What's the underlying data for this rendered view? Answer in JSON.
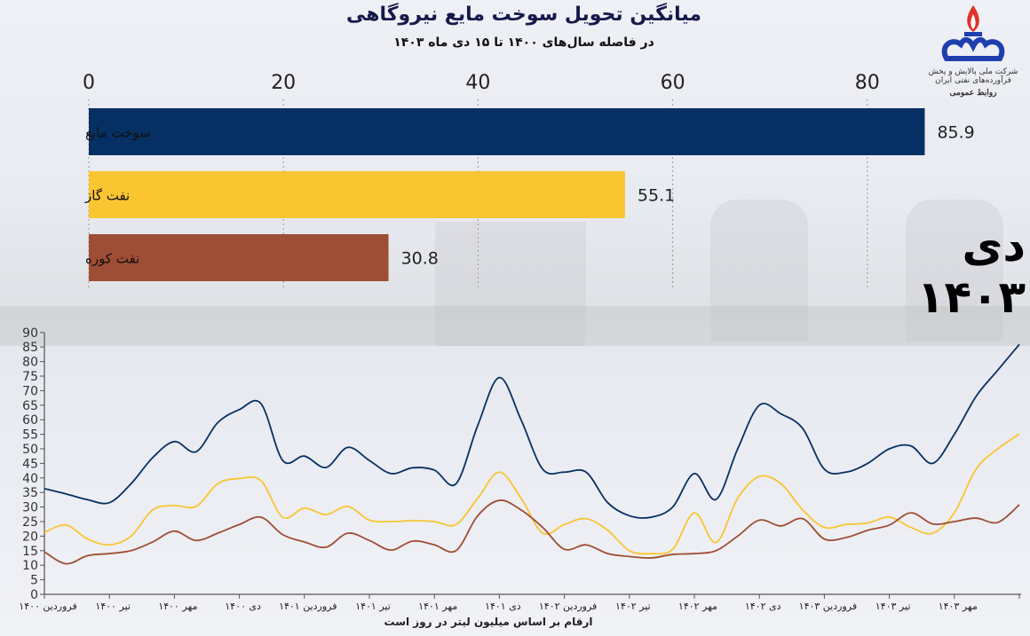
{
  "header": {
    "title": "میانگین تحویل سوخت مایع نیروگاهی",
    "subtitle": "در فاصله سال‌های ۱۴۰۰ تا ۱۵ دی ماه ۱۴۰۳"
  },
  "logo": {
    "org": "شرکت ملی پالایش و پخش فرآورده‌های نفتی ایران",
    "dept": "روابط عمومی"
  },
  "big_date": "دی ۱۴۰۳",
  "caption": "ارقام بر اساس میلیون لیتر در روز است",
  "colors": {
    "liquid_fuel": "#063063",
    "gasoil": "#f9c531",
    "fuel_oil": "#9e4e34"
  },
  "chart_data": [
    {
      "type": "bar",
      "orientation": "horizontal",
      "categories": [
        "سوخت مایع",
        "نفت گاز",
        "نفت کوره"
      ],
      "values": [
        85.9,
        55.1,
        30.8
      ],
      "value_labels": [
        "85.9",
        "55.1",
        "30.8"
      ],
      "xlim": [
        0,
        88
      ],
      "xticks": [
        "0",
        "20",
        "40",
        "60",
        "80"
      ],
      "axis_position": "top",
      "grid": true
    },
    {
      "type": "line",
      "x": [
        "فروردین ۱۴۰۰",
        "اردیبهشت ۱۴۰۰",
        "خرداد ۱۴۰۰",
        "تیر ۱۴۰۰",
        "مرداد ۱۴۰۰",
        "شهریور ۱۴۰۰",
        "مهر ۱۴۰۰",
        "آبان ۱۴۰۰",
        "آذر ۱۴۰۰",
        "دی ۱۴۰۰",
        "بهمن ۱۴۰۰",
        "اسفند ۱۴۰۰",
        "فروردین ۱۴۰۱",
        "اردیبهشت ۱۴۰۱",
        "خرداد ۱۴۰۱",
        "تیر ۱۴۰۱",
        "مرداد ۱۴۰۱",
        "شهریور ۱۴۰۱",
        "مهر ۱۴۰۱",
        "آبان ۱۴۰۱",
        "آذر ۱۴۰۱",
        "دی ۱۴۰۱",
        "بهمن ۱۴۰۱",
        "اسفند ۱۴۰۱",
        "فروردین ۱۴۰۲",
        "اردیبهشت ۱۴۰۲",
        "خرداد ۱۴۰۲",
        "تیر ۱۴۰۲",
        "مرداد ۱۴۰۲",
        "شهریور ۱۴۰۲",
        "مهر ۱۴۰۲",
        "آبان ۱۴۰۲",
        "آذر ۱۴۰۲",
        "دی ۱۴۰۲",
        "بهمن ۱۴۰۲",
        "اسفند ۱۴۰۲",
        "فروردین ۱۴۰۳",
        "اردیبهشت ۱۴۰۳",
        "خرداد ۱۴۰۳",
        "تیر ۱۴۰۳",
        "مرداد ۱۴۰۳",
        "شهریور ۱۴۰۳",
        "مهر ۱۴۰۳",
        "آبان ۱۴۰۳",
        "آذر ۱۴۰۳",
        "دی ۱۴۰۳"
      ],
      "xtick_labels": [
        "فروردین ۱۴۰۰",
        "تیر ۱۴۰۰",
        "مهر ۱۴۰۰",
        "دی ۱۴۰۰",
        "فروردین ۱۴۰۱",
        "تیر ۱۴۰۱",
        "مهر ۱۴۰۱",
        "دی ۱۴۰۱",
        "فروردین ۱۴۰۲",
        "تیر ۱۴۰۲",
        "مهر ۱۴۰۲",
        "دی ۱۴۰۲",
        "فروردین ۱۴۰۳",
        "تیر ۱۴۰۳",
        "مهر ۱۴۰۳"
      ],
      "ylim": [
        0,
        90
      ],
      "yticks": [
        "0",
        "5",
        "10",
        "15",
        "20",
        "25",
        "30",
        "35",
        "40",
        "45",
        "50",
        "55",
        "60",
        "65",
        "70",
        "75",
        "80",
        "85",
        "90"
      ],
      "grid": false,
      "series": [
        {
          "key": "liquid_fuel",
          "values": [
            36.3,
            34.5,
            32.5,
            31.5,
            38,
            47,
            52.5,
            49,
            59,
            63.5,
            65.5,
            46,
            47.5,
            43.6,
            50.5,
            46,
            41.5,
            43.5,
            42.7,
            38,
            58,
            74.5,
            60,
            43,
            42,
            42,
            31.5,
            27,
            26.5,
            30,
            41.5,
            32.6,
            50,
            65,
            62,
            57,
            43,
            42,
            45,
            50,
            51,
            45,
            55,
            68,
            77,
            85.9
          ]
        },
        {
          "key": "gasoil",
          "values": [
            21.3,
            23.8,
            19,
            17,
            20,
            29,
            30.5,
            30.2,
            38,
            39.8,
            39,
            26.5,
            29.6,
            27.4,
            30.2,
            25.5,
            25,
            25.3,
            25,
            24,
            33,
            42,
            33,
            21,
            24,
            26,
            22,
            15,
            14,
            15.5,
            28,
            17.8,
            33,
            40.5,
            38,
            29,
            23,
            24,
            24.5,
            26.5,
            23,
            21,
            28,
            43,
            50,
            55.1
          ]
        },
        {
          "key": "fuel_oil",
          "values": [
            14.6,
            10.5,
            13.3,
            14,
            15,
            18,
            21.7,
            18.5,
            21,
            24,
            26.5,
            20.5,
            18,
            16.2,
            21,
            18.5,
            15.2,
            18.3,
            17,
            15,
            27,
            32.3,
            29,
            23,
            15.5,
            17,
            14,
            13,
            12.5,
            13.7,
            14,
            15,
            20,
            25.5,
            23.5,
            26,
            19,
            19.5,
            22,
            23.8,
            28,
            24.2,
            25,
            26.2,
            24.7,
            30.8
          ]
        }
      ]
    }
  ]
}
